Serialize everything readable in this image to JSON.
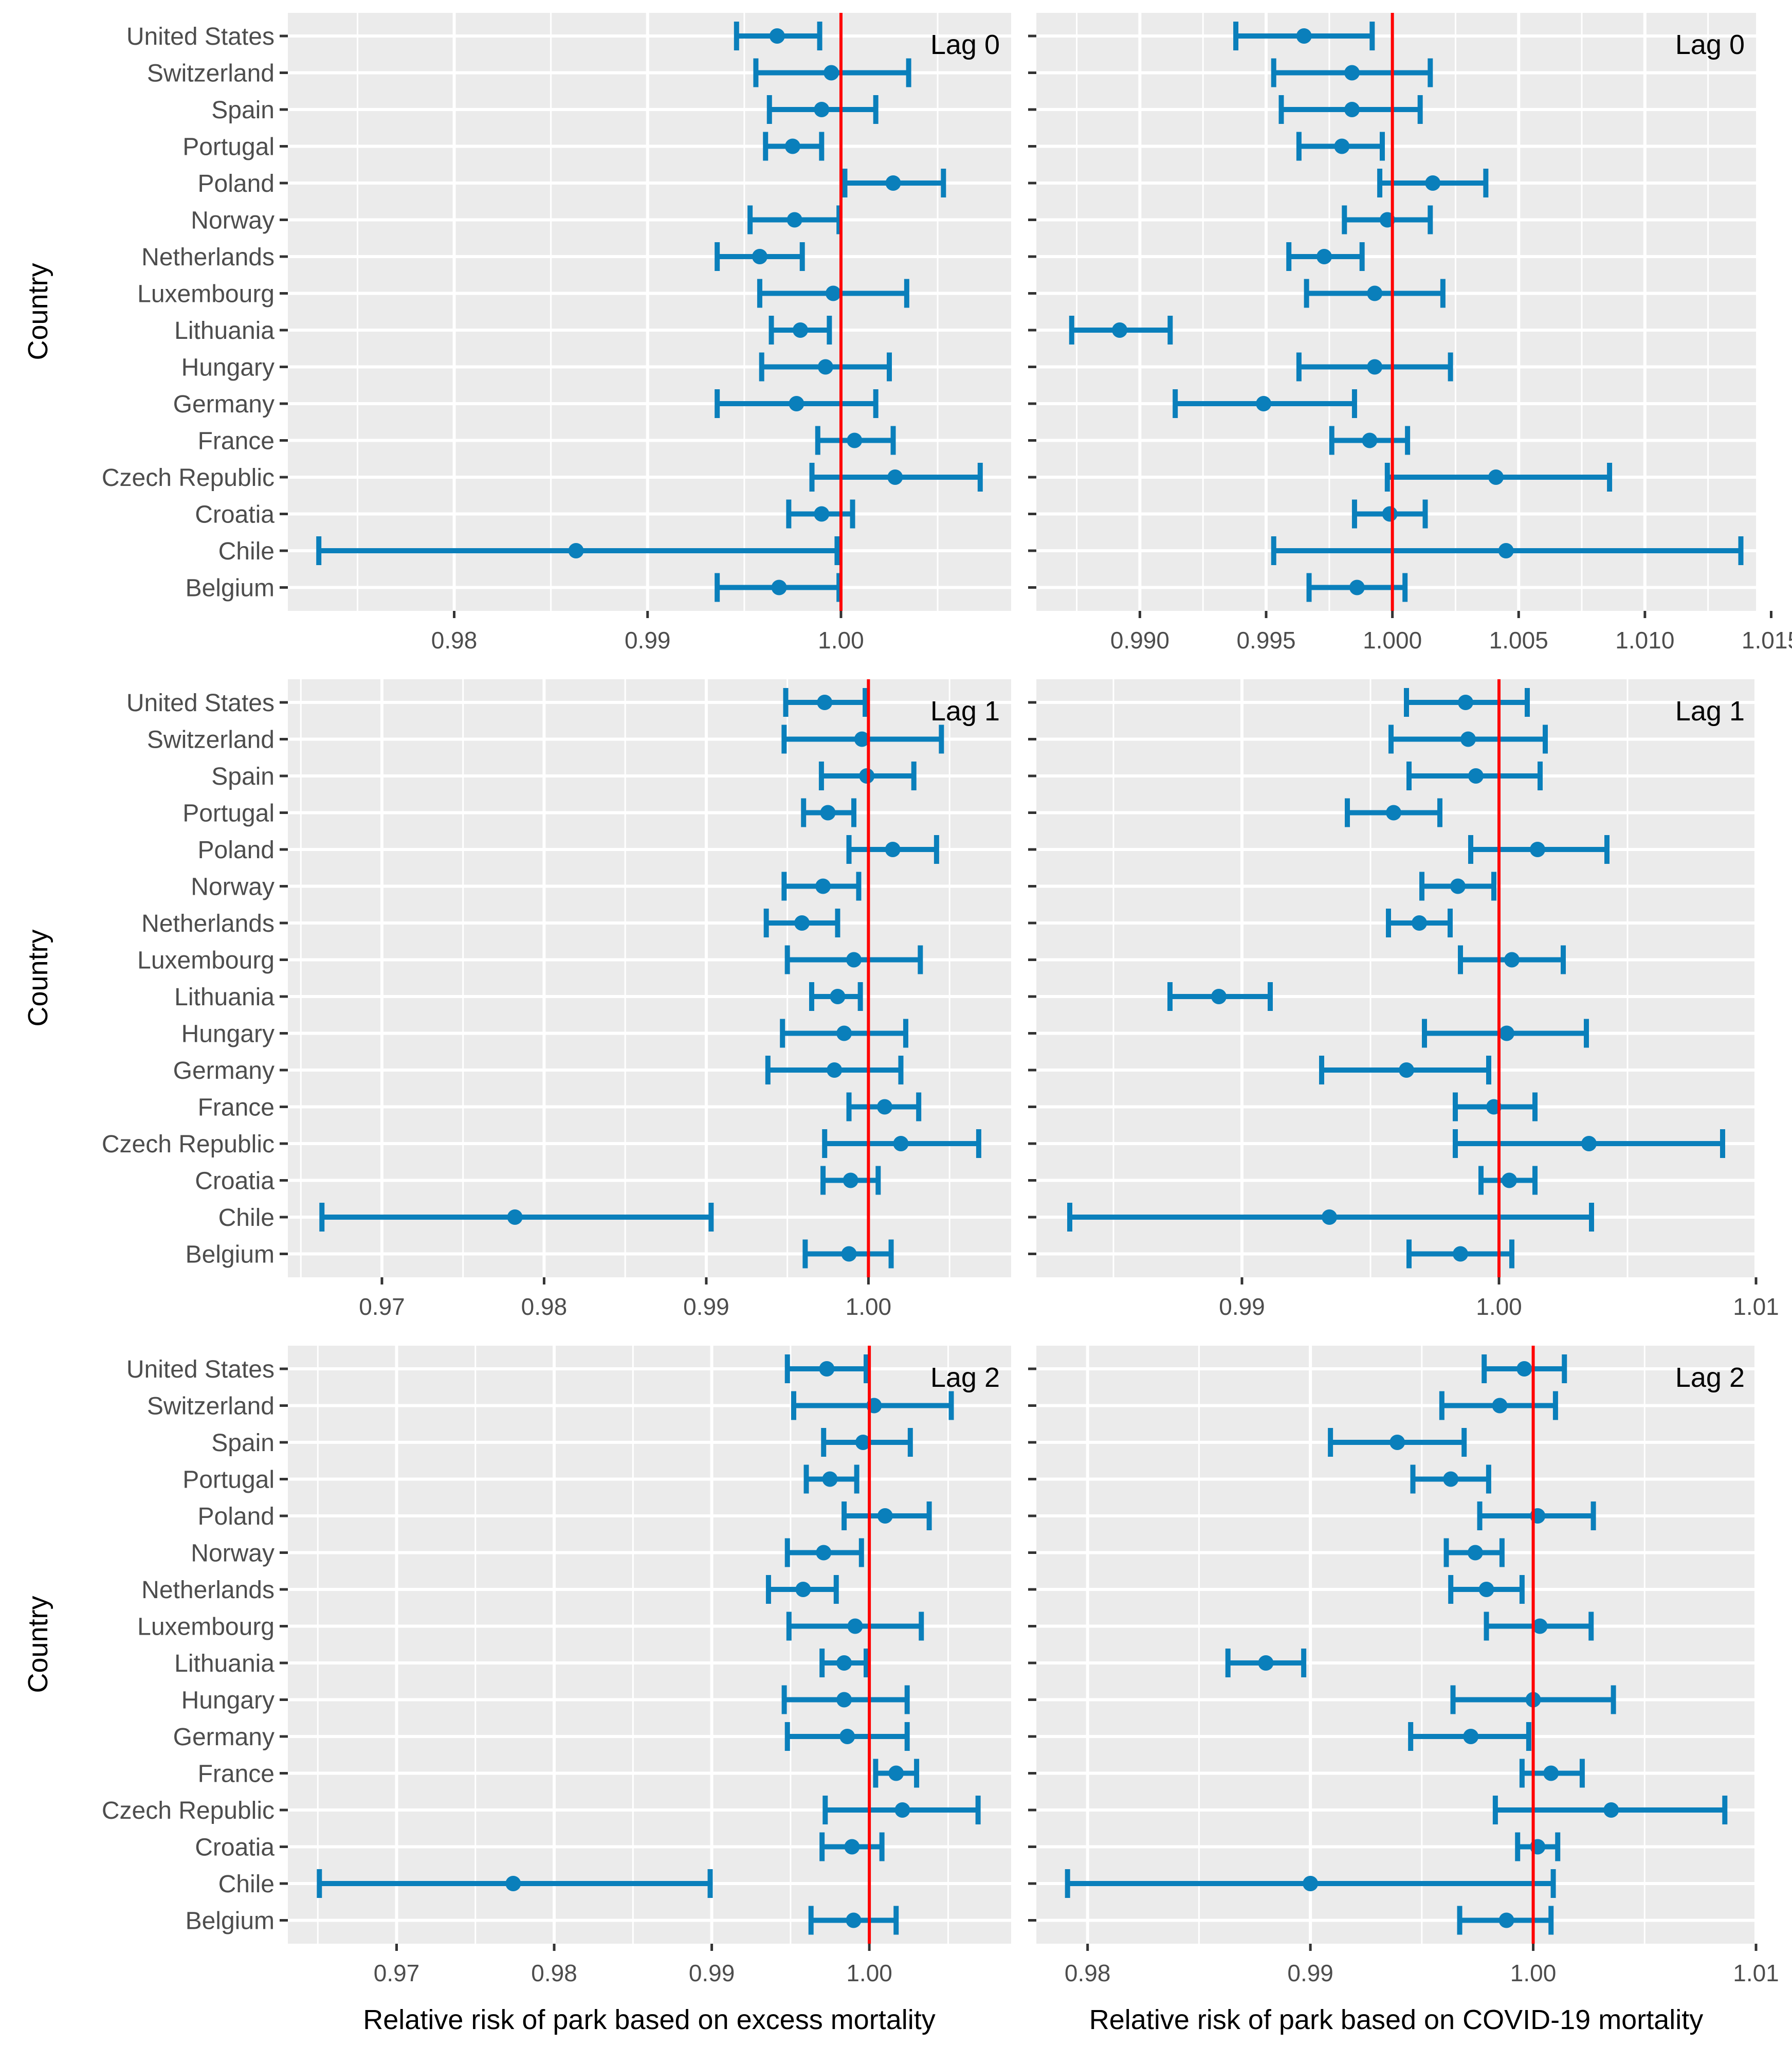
{
  "figure": {
    "y_axis_title": "Country",
    "x_axis_titles": [
      "Relative risk of park based on excess mortality",
      "Relative risk of park based on COVID-19 mortality"
    ],
    "colors": {
      "panel_bg": "#ebebeb",
      "grid": "#ffffff",
      "point": "#0a7fbb",
      "reference_line": "#ff0000",
      "tick_text": "#4d4d4d",
      "title_text": "#000000"
    }
  },
  "chart_data": [
    {
      "type": "errorbar",
      "panel": "excess-lag0",
      "annotation": "Lag 0",
      "xlabel": "",
      "ylabel": "Country",
      "reference_line": 1.0,
      "xlim": [
        0.9714,
        1.0088
      ],
      "xticks": [
        0.98,
        0.99,
        1.0
      ],
      "xtick_labels": [
        "0.98",
        "0.99",
        "1.00"
      ],
      "categories": [
        "United States",
        "Switzerland",
        "Spain",
        "Portugal",
        "Poland",
        "Norway",
        "Netherlands",
        "Luxembourg",
        "Lithuania",
        "Hungary",
        "Germany",
        "France",
        "Czech Republic",
        "Croatia",
        "Chile",
        "Belgium"
      ],
      "estimate": [
        0.9967,
        0.9995,
        0.999,
        0.9975,
        1.0027,
        0.9976,
        0.9958,
        0.9996,
        0.9979,
        0.9992,
        0.9977,
        1.0007,
        1.0028,
        0.999,
        0.9863,
        0.9968
      ],
      "lower": [
        0.9946,
        0.9956,
        0.9963,
        0.9961,
        1.0002,
        0.9953,
        0.9936,
        0.9958,
        0.9964,
        0.9959,
        0.9936,
        0.9988,
        0.9985,
        0.9973,
        0.973,
        0.9936
      ],
      "upper": [
        0.9989,
        1.0035,
        1.0018,
        0.999,
        1.0053,
        0.9999,
        0.998,
        1.0034,
        0.9994,
        1.0025,
        1.0018,
        1.0027,
        1.0072,
        1.0006,
        0.9998,
        0.9999
      ]
    },
    {
      "type": "errorbar",
      "panel": "covid-lag0",
      "annotation": "Lag 0",
      "xlabel": "",
      "ylabel": "",
      "reference_line": 1.0,
      "xlim": [
        0.9859,
        1.0144
      ],
      "xticks": [
        0.99,
        0.995,
        1.0,
        1.005,
        1.01,
        1.015
      ],
      "xtick_labels": [
        "0.990",
        "0.995",
        "1.000",
        "1.005",
        "1.010",
        "1.015"
      ],
      "categories": [
        "United States",
        "Switzerland",
        "Spain",
        "Portugal",
        "Poland",
        "Norway",
        "Netherlands",
        "Luxembourg",
        "Lithuania",
        "Hungary",
        "Germany",
        "France",
        "Czech Republic",
        "Croatia",
        "Chile",
        "Belgium"
      ],
      "estimate": [
        0.9965,
        0.9984,
        0.9984,
        0.998,
        1.0016,
        0.9998,
        0.9973,
        0.9993,
        0.9892,
        0.9993,
        0.9949,
        0.9991,
        1.0041,
        0.9999,
        1.0045,
        0.9986
      ],
      "lower": [
        0.9938,
        0.9953,
        0.9956,
        0.9963,
        0.9995,
        0.9981,
        0.9959,
        0.9966,
        0.9873,
        0.9963,
        0.9914,
        0.9976,
        0.9998,
        0.9985,
        0.9953,
        0.9967
      ],
      "upper": [
        0.9992,
        1.0015,
        1.0011,
        0.9996,
        1.0037,
        1.0015,
        0.9988,
        1.002,
        0.9912,
        1.0023,
        0.9985,
        1.0006,
        1.0086,
        1.0013,
        1.0138,
        1.0005
      ]
    },
    {
      "type": "errorbar",
      "panel": "excess-lag1",
      "annotation": "Lag 1",
      "xlabel": "",
      "ylabel": "Country",
      "reference_line": 1.0,
      "xlim": [
        0.9642,
        1.0088
      ],
      "xticks": [
        0.97,
        0.98,
        0.99,
        1.0
      ],
      "xtick_labels": [
        "0.97",
        "0.98",
        "0.99",
        "1.00"
      ],
      "categories": [
        "United States",
        "Switzerland",
        "Spain",
        "Portugal",
        "Poland",
        "Norway",
        "Netherlands",
        "Luxembourg",
        "Lithuania",
        "Hungary",
        "Germany",
        "France",
        "Czech Republic",
        "Croatia",
        "Chile",
        "Belgium"
      ],
      "estimate": [
        0.9973,
        0.9996,
        0.9999,
        0.9975,
        1.0015,
        0.9972,
        0.9959,
        0.9991,
        0.9981,
        0.9985,
        0.9979,
        1.001,
        1.002,
        0.9989,
        0.9782,
        0.9988
      ],
      "lower": [
        0.9949,
        0.9948,
        0.9971,
        0.996,
        0.9988,
        0.9948,
        0.9937,
        0.995,
        0.9965,
        0.9947,
        0.9938,
        0.9988,
        0.9973,
        0.9972,
        0.9663,
        0.9961
      ],
      "upper": [
        0.9998,
        1.0045,
        1.0028,
        0.9991,
        1.0042,
        0.9994,
        0.9981,
        1.0032,
        0.9995,
        1.0023,
        1.002,
        1.0031,
        1.0068,
        1.0006,
        0.9903,
        1.0014
      ]
    },
    {
      "type": "errorbar",
      "panel": "covid-lag1",
      "annotation": "Lag 1",
      "xlabel": "",
      "ylabel": "",
      "reference_line": 1.0,
      "xlim": [
        0.982,
        1.01
      ],
      "xticks": [
        0.99,
        1.0,
        1.01
      ],
      "xtick_labels": [
        "0.99",
        "1.00",
        "1.01"
      ],
      "categories": [
        "United States",
        "Switzerland",
        "Spain",
        "Portugal",
        "Poland",
        "Norway",
        "Netherlands",
        "Luxembourg",
        "Lithuania",
        "Hungary",
        "Germany",
        "France",
        "Czech Republic",
        "Croatia",
        "Chile",
        "Belgium"
      ],
      "estimate": [
        0.9987,
        0.9988,
        0.9991,
        0.9959,
        1.0015,
        0.9984,
        0.9969,
        1.0005,
        0.9891,
        1.0003,
        0.9964,
        0.9998,
        1.0035,
        1.0004,
        0.9934,
        0.9985
      ],
      "lower": [
        0.9964,
        0.9958,
        0.9965,
        0.9941,
        0.9989,
        0.997,
        0.9957,
        0.9985,
        0.9872,
        0.9971,
        0.9931,
        0.9983,
        0.9983,
        0.9993,
        0.9833,
        0.9965
      ],
      "upper": [
        1.0011,
        1.0018,
        1.0016,
        0.9977,
        1.0042,
        0.9998,
        0.9981,
        1.0025,
        0.9911,
        1.0034,
        0.9996,
        1.0014,
        1.0087,
        1.0014,
        1.0036,
        1.0005
      ]
    },
    {
      "type": "errorbar",
      "panel": "excess-lag2",
      "annotation": "Lag 2",
      "xlabel": "Relative risk of park based on excess mortality",
      "ylabel": "Country",
      "reference_line": 1.0,
      "xlim": [
        0.9631,
        1.009
      ],
      "xticks": [
        0.97,
        0.98,
        0.99,
        1.0
      ],
      "xtick_labels": [
        "0.97",
        "0.98",
        "0.99",
        "1.00"
      ],
      "categories": [
        "United States",
        "Switzerland",
        "Spain",
        "Portugal",
        "Poland",
        "Norway",
        "Netherlands",
        "Luxembourg",
        "Lithuania",
        "Hungary",
        "Germany",
        "France",
        "Czech Republic",
        "Croatia",
        "Chile",
        "Belgium"
      ],
      "estimate": [
        0.9973,
        1.0003,
        0.9996,
        0.9975,
        1.001,
        0.9971,
        0.9958,
        0.9991,
        0.9984,
        0.9984,
        0.9986,
        1.0017,
        1.0021,
        0.9989,
        0.9774,
        0.999
      ],
      "lower": [
        0.9948,
        0.9952,
        0.9971,
        0.996,
        0.9984,
        0.9948,
        0.9936,
        0.9949,
        0.997,
        0.9946,
        0.9948,
        1.0004,
        0.9972,
        0.997,
        0.9651,
        0.9963
      ],
      "upper": [
        0.9998,
        1.0052,
        1.0026,
        0.9992,
        1.0038,
        0.9995,
        0.9979,
        1.0033,
        0.9998,
        1.0024,
        1.0024,
        1.003,
        1.0069,
        1.0008,
        0.9899,
        1.0017
      ]
    },
    {
      "type": "errorbar",
      "panel": "covid-lag2",
      "annotation": "Lag 2",
      "xlabel": "Relative risk of park based on COVID-19 mortality",
      "ylabel": "",
      "reference_line": 1.0,
      "xlim": [
        0.9777,
        1.01
      ],
      "xticks": [
        0.98,
        0.99,
        1.0,
        1.01
      ],
      "xtick_labels": [
        "0.98",
        "0.99",
        "1.00",
        "1.01"
      ],
      "categories": [
        "United States",
        "Switzerland",
        "Spain",
        "Portugal",
        "Poland",
        "Norway",
        "Netherlands",
        "Luxembourg",
        "Lithuania",
        "Hungary",
        "Germany",
        "France",
        "Czech Republic",
        "Croatia",
        "Chile",
        "Belgium"
      ],
      "estimate": [
        0.9996,
        0.9985,
        0.9939,
        0.9963,
        1.0002,
        0.9974,
        0.9979,
        1.0003,
        0.988,
        1.0,
        0.9972,
        1.0008,
        1.0035,
        1.0002,
        0.99,
        0.9988
      ],
      "lower": [
        0.9978,
        0.9959,
        0.9909,
        0.9946,
        0.9976,
        0.9961,
        0.9963,
        0.9979,
        0.9863,
        0.9964,
        0.9945,
        0.9995,
        0.9983,
        0.9993,
        0.9791,
        0.9967
      ],
      "upper": [
        1.0014,
        1.001,
        0.9969,
        0.998,
        1.0027,
        0.9986,
        0.9995,
        1.0026,
        0.9897,
        1.0036,
        0.9998,
        1.0022,
        1.0086,
        1.0011,
        1.0009,
        1.0008
      ]
    }
  ]
}
